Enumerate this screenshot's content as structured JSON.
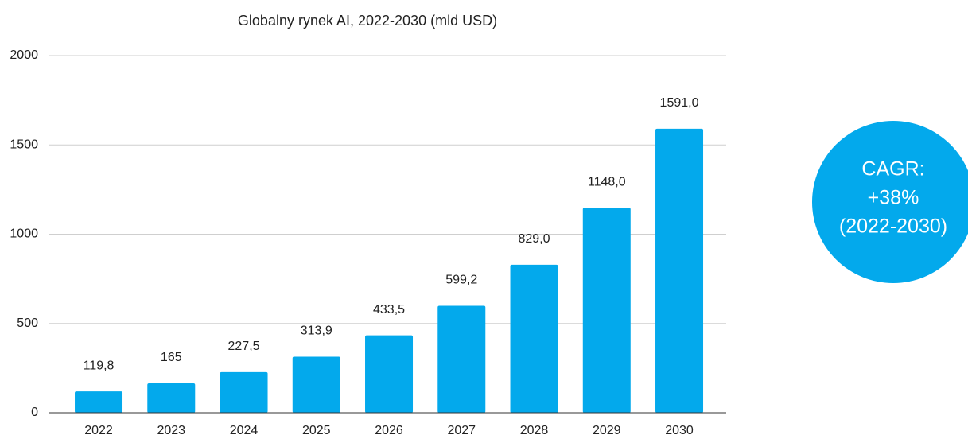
{
  "chart_data": {
    "type": "bar",
    "title": "Globalny rynek AI, 2022-2030 (mld USD)",
    "categories": [
      "2022",
      "2023",
      "2024",
      "2025",
      "2026",
      "2027",
      "2028",
      "2029",
      "2030"
    ],
    "values": [
      119.8,
      165,
      227.5,
      313.9,
      433.5,
      599.2,
      829,
      1148,
      1591
    ],
    "value_labels": [
      "119,8",
      "165",
      "227,5",
      "313,9",
      "433,5",
      "599,2",
      "829,0",
      "1148,0",
      "1591,0"
    ],
    "color": "#03a9ec",
    "ylim": [
      0,
      2000
    ],
    "yticks": [
      0,
      500,
      1000,
      1500,
      2000
    ],
    "grid": true,
    "annotation": [
      "CAGR:",
      "+38%",
      "(2022-2030)"
    ]
  }
}
